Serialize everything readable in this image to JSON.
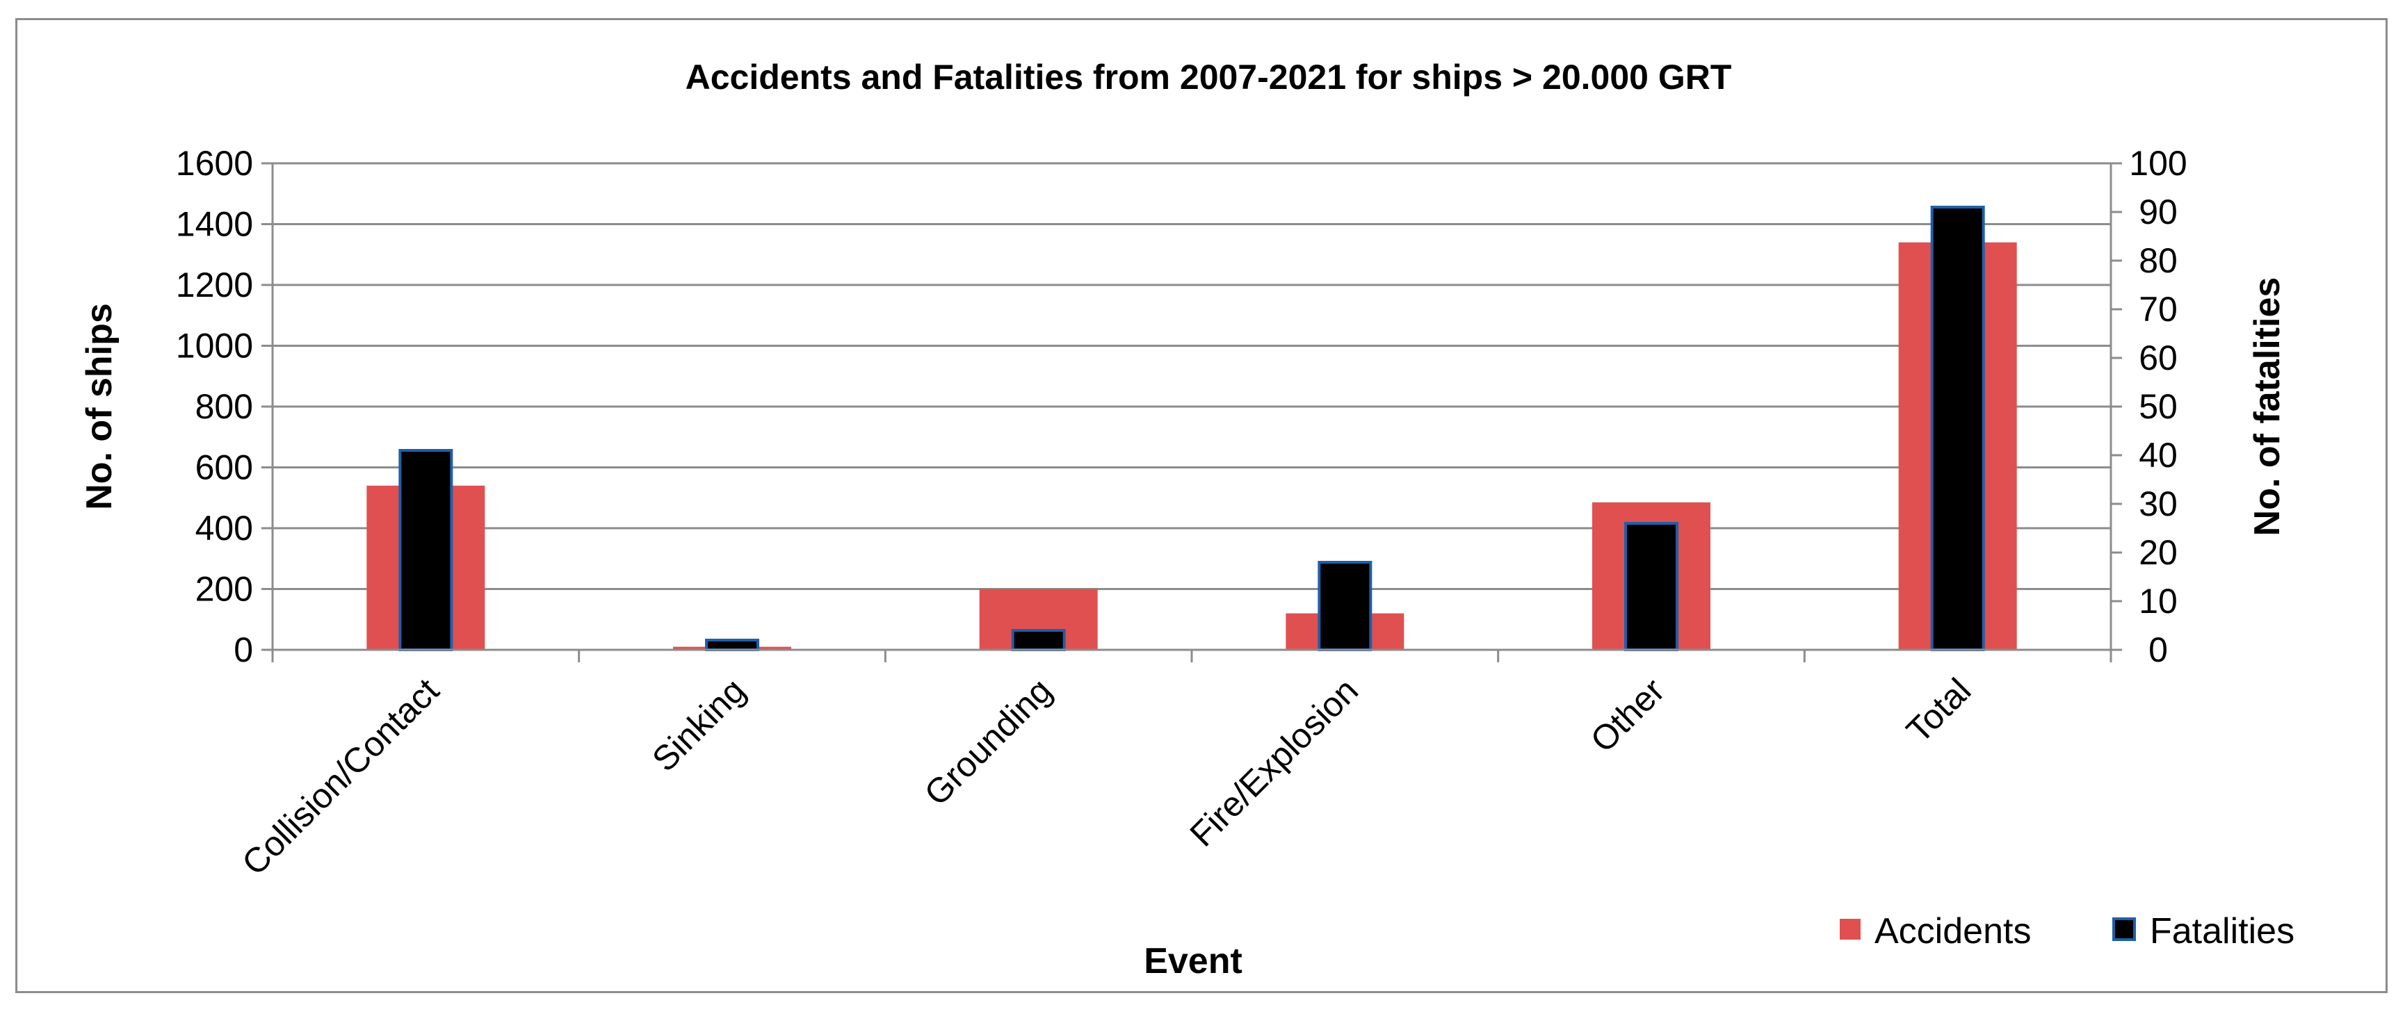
{
  "chart_data": {
    "type": "bar",
    "title": "Accidents and Fatalities from 2007-2021 for  ships > 20.000 GRT",
    "xlabel": "Event",
    "ylabel": "No. of ships",
    "y2label": "No. of fatalities",
    "categories": [
      "Collision/Contact",
      "Sinking",
      "Grounding",
      "Fire/Explosion",
      "Other",
      "Total"
    ],
    "ylim": [
      0,
      1600
    ],
    "y2lim": [
      0,
      100
    ],
    "yticks": [
      0,
      200,
      400,
      600,
      800,
      1000,
      1200,
      1400,
      1600
    ],
    "y2ticks": [
      0,
      10,
      20,
      30,
      40,
      50,
      60,
      70,
      80,
      90,
      100
    ],
    "grid": true,
    "legend_position": "bottom-right",
    "series": [
      {
        "name": "Accidents",
        "axis": "left",
        "color": "#e05050",
        "values": [
          540,
          10,
          200,
          120,
          485,
          1340
        ]
      },
      {
        "name": "Fatalities",
        "axis": "right",
        "color": "#000000",
        "edge": "#1f5fa8",
        "values": [
          41,
          2,
          4,
          18,
          26,
          91
        ]
      }
    ]
  }
}
